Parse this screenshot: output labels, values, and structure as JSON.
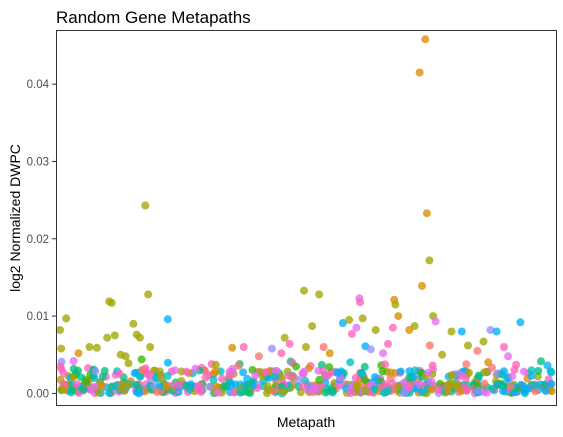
{
  "chart_data": {
    "type": "scatter",
    "title": "Random Gene Metapaths",
    "xlabel": "Metapath",
    "ylabel": "log2 Normalized DWPC",
    "ylim": [
      -0.0015,
      0.047
    ],
    "yticks": [
      0.0,
      0.01,
      0.02,
      0.03,
      0.04
    ],
    "ytick_labels": [
      "0.00",
      "0.01",
      "0.02",
      "0.03",
      "0.04"
    ],
    "xticks": [],
    "grid": false,
    "legend": "none",
    "point_alpha": 0.78,
    "palette": [
      "#F8766D",
      "#D89000",
      "#A3A500",
      "#39B600",
      "#00BF7D",
      "#00BFC4",
      "#00B0F6",
      "#9590FF",
      "#E76BF3",
      "#FF62BC"
    ],
    "n_baseline_points": 700,
    "notable_points": [
      {
        "x": 0.0,
        "y": 0.0082,
        "color": "#A3A500"
      },
      {
        "x": 0.3,
        "y": 0.0058,
        "color": "#A3A500"
      },
      {
        "x": 1.5,
        "y": 0.0097,
        "color": "#A3A500"
      },
      {
        "x": 4.5,
        "y": 0.0052,
        "color": "#D89000"
      },
      {
        "x": 7.2,
        "y": 0.006,
        "color": "#A3A500"
      },
      {
        "x": 9.0,
        "y": 0.0059,
        "color": "#A3A500"
      },
      {
        "x": 11.5,
        "y": 0.0072,
        "color": "#A3A500"
      },
      {
        "x": 12.0,
        "y": 0.0119,
        "color": "#A3A500"
      },
      {
        "x": 12.6,
        "y": 0.0117,
        "color": "#A3A500"
      },
      {
        "x": 13.4,
        "y": 0.0075,
        "color": "#A3A500"
      },
      {
        "x": 14.8,
        "y": 0.005,
        "color": "#A3A500"
      },
      {
        "x": 16.0,
        "y": 0.0048,
        "color": "#A3A500"
      },
      {
        "x": 17.9,
        "y": 0.009,
        "color": "#A3A500"
      },
      {
        "x": 18.7,
        "y": 0.0076,
        "color": "#A3A500"
      },
      {
        "x": 19.5,
        "y": 0.0072,
        "color": "#A3A500"
      },
      {
        "x": 19.9,
        "y": 0.0044,
        "color": "#39B600"
      },
      {
        "x": 20.8,
        "y": 0.0243,
        "color": "#A3A500"
      },
      {
        "x": 21.5,
        "y": 0.0128,
        "color": "#A3A500"
      },
      {
        "x": 22.0,
        "y": 0.006,
        "color": "#A3A500"
      },
      {
        "x": 26.3,
        "y": 0.0096,
        "color": "#00B0F6"
      },
      {
        "x": 33.0,
        "y": 0.0032,
        "color": "#E76BF3"
      },
      {
        "x": 38.0,
        "y": 0.0037,
        "color": "#A3A500"
      },
      {
        "x": 42.0,
        "y": 0.0059,
        "color": "#D89000"
      },
      {
        "x": 44.8,
        "y": 0.006,
        "color": "#FF62BC"
      },
      {
        "x": 48.5,
        "y": 0.0048,
        "color": "#F8766D"
      },
      {
        "x": 51.7,
        "y": 0.0058,
        "color": "#9590FF"
      },
      {
        "x": 54.0,
        "y": 0.0052,
        "color": "#FF62BC"
      },
      {
        "x": 54.8,
        "y": 0.0072,
        "color": "#A3A500"
      },
      {
        "x": 56.0,
        "y": 0.0064,
        "color": "#FF62BC"
      },
      {
        "x": 59.5,
        "y": 0.0133,
        "color": "#A3A500"
      },
      {
        "x": 60.0,
        "y": 0.006,
        "color": "#A3A500"
      },
      {
        "x": 61.5,
        "y": 0.0087,
        "color": "#A3A500"
      },
      {
        "x": 63.2,
        "y": 0.0128,
        "color": "#A3A500"
      },
      {
        "x": 64.3,
        "y": 0.006,
        "color": "#F8766D"
      },
      {
        "x": 65.8,
        "y": 0.0052,
        "color": "#D89000"
      },
      {
        "x": 69.0,
        "y": 0.0091,
        "color": "#00B0F6"
      },
      {
        "x": 70.5,
        "y": 0.0095,
        "color": "#A3A500"
      },
      {
        "x": 71.2,
        "y": 0.0077,
        "color": "#FF62BC"
      },
      {
        "x": 72.3,
        "y": 0.0085,
        "color": "#E76BF3"
      },
      {
        "x": 73.0,
        "y": 0.0123,
        "color": "#E76BF3"
      },
      {
        "x": 73.2,
        "y": 0.0118,
        "color": "#FF62BC"
      },
      {
        "x": 73.8,
        "y": 0.0097,
        "color": "#A3A500"
      },
      {
        "x": 74.5,
        "y": 0.0061,
        "color": "#00B0F6"
      },
      {
        "x": 75.8,
        "y": 0.0057,
        "color": "#9590FF"
      },
      {
        "x": 77.0,
        "y": 0.0082,
        "color": "#A3A500"
      },
      {
        "x": 78.8,
        "y": 0.0052,
        "color": "#E76BF3"
      },
      {
        "x": 80.0,
        "y": 0.0064,
        "color": "#FF62BC"
      },
      {
        "x": 81.5,
        "y": 0.0121,
        "color": "#D89000"
      },
      {
        "x": 81.8,
        "y": 0.0115,
        "color": "#A3A500"
      },
      {
        "x": 82.5,
        "y": 0.01,
        "color": "#D89000"
      },
      {
        "x": 81.2,
        "y": 0.0085,
        "color": "#FF62BC"
      },
      {
        "x": 85.2,
        "y": 0.0082,
        "color": "#D89000"
      },
      {
        "x": 86.5,
        "y": 0.0087,
        "color": "#A3A500"
      },
      {
        "x": 87.7,
        "y": 0.0415,
        "color": "#D89000"
      },
      {
        "x": 88.3,
        "y": 0.0139,
        "color": "#D89000"
      },
      {
        "x": 89.1,
        "y": 0.0458,
        "color": "#D89000"
      },
      {
        "x": 89.5,
        "y": 0.0233,
        "color": "#D89000"
      },
      {
        "x": 90.1,
        "y": 0.0172,
        "color": "#A3A500"
      },
      {
        "x": 91.0,
        "y": 0.01,
        "color": "#A3A500"
      },
      {
        "x": 91.6,
        "y": 0.0093,
        "color": "#E76BF3"
      },
      {
        "x": 90.2,
        "y": 0.0062,
        "color": "#F8766D"
      },
      {
        "x": 93.2,
        "y": 0.005,
        "color": "#A3A500"
      },
      {
        "x": 95.5,
        "y": 0.008,
        "color": "#A3A500"
      },
      {
        "x": 98.0,
        "y": 0.008,
        "color": "#00B0F6"
      },
      {
        "x": 99.5,
        "y": 0.0062,
        "color": "#A3A500"
      },
      {
        "x": 101.8,
        "y": 0.0055,
        "color": "#F8766D"
      },
      {
        "x": 103.3,
        "y": 0.0067,
        "color": "#A3A500"
      },
      {
        "x": 105.0,
        "y": 0.0082,
        "color": "#9590FF"
      },
      {
        "x": 106.5,
        "y": 0.008,
        "color": "#00B0F6"
      },
      {
        "x": 108.3,
        "y": 0.006,
        "color": "#FF62BC"
      },
      {
        "x": 109.3,
        "y": 0.0048,
        "color": "#E76BF3"
      },
      {
        "x": 112.3,
        "y": 0.0092,
        "color": "#00B0F6"
      },
      {
        "x": 115.0,
        "y": 0.003,
        "color": "#00BFC4"
      }
    ]
  }
}
